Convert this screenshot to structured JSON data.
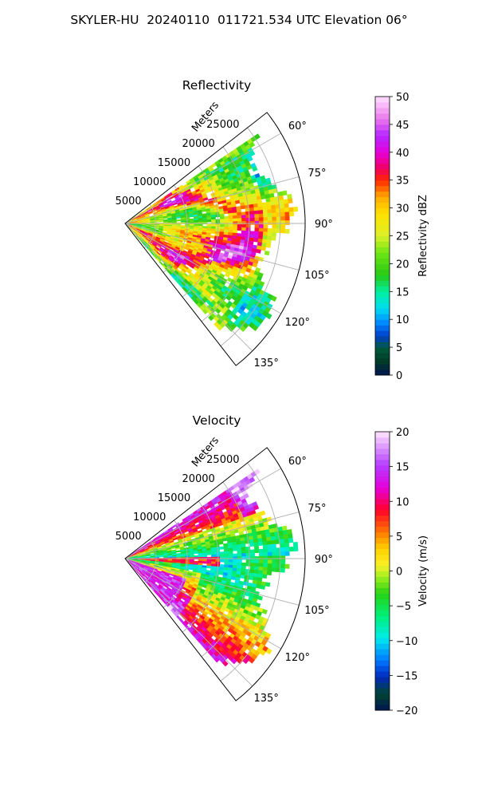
{
  "figure": {
    "title": "SKYLER-HU  20240110  011721.534 UTC Elevation 06°"
  },
  "chart_data": [
    {
      "type": "heatmap",
      "polar": true,
      "title": "Reflectivity",
      "radial_label": "Meters",
      "radial_ticks": [
        "5000",
        "10000",
        "15000",
        "20000",
        "25000"
      ],
      "radial_tick_values": [
        5000,
        10000,
        15000,
        20000,
        25000
      ],
      "r_max": 29000,
      "angle_ticks": [
        "60°",
        "75°",
        "90°",
        "105°",
        "120°",
        "135°"
      ],
      "angle_tick_values": [
        60,
        75,
        90,
        105,
        120,
        135
      ],
      "angle_range": [
        52,
        142
      ],
      "grid": true,
      "colorbar": {
        "label": "Reflectivity dBZ",
        "range": [
          0,
          50
        ],
        "ticks": [
          "0",
          "5",
          "10",
          "15",
          "20",
          "25",
          "30",
          "35",
          "40",
          "45",
          "50"
        ],
        "tick_values": [
          0,
          5,
          10,
          15,
          20,
          25,
          30,
          35,
          40,
          45,
          50
        ],
        "colormap": "NWS reflectivity"
      },
      "field_description": "Mostly 25-35 dBZ echoes across the sector, with bands of 35-42 dBZ near 10000-25000 m and weaker 15-25 dBZ fringes near the edges"
    },
    {
      "type": "heatmap",
      "polar": true,
      "title": "Velocity",
      "radial_label": "Meters",
      "radial_ticks": [
        "5000",
        "10000",
        "15000",
        "20000",
        "25000"
      ],
      "radial_tick_values": [
        5000,
        10000,
        15000,
        20000,
        25000
      ],
      "r_max": 29000,
      "angle_ticks": [
        "60°",
        "75°",
        "90°",
        "105°",
        "120°",
        "135°"
      ],
      "angle_tick_values": [
        60,
        75,
        90,
        105,
        120,
        135
      ],
      "angle_range": [
        52,
        142
      ],
      "grid": true,
      "colorbar": {
        "label": "Velocity (m/s)",
        "range": [
          -20,
          20
        ],
        "ticks": [
          "−20",
          "−15",
          "−10",
          "−5",
          "0",
          "5",
          "10",
          "15",
          "20"
        ],
        "tick_values": [
          -20,
          -15,
          -10,
          -5,
          0,
          5,
          10,
          15,
          20
        ],
        "colormap": "NWS velocity"
      },
      "field_description": "Positive velocities 10-20 m/s near 60° and in the lower sector around 110-135°, negative -5 to -10 m/s across the middle of the sector near 75-105°"
    }
  ]
}
